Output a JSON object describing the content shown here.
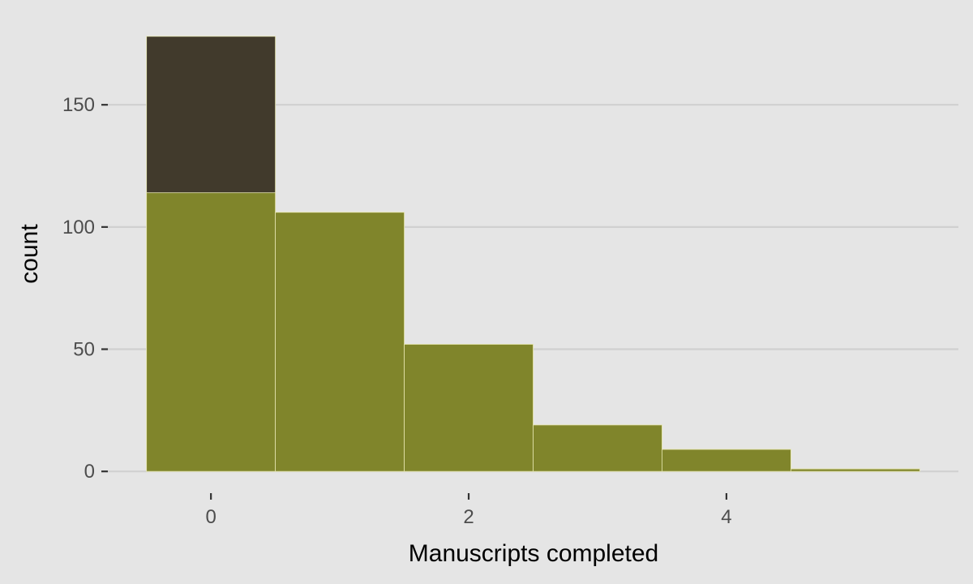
{
  "chart_data": {
    "type": "bar",
    "title": "",
    "xlabel": "Manuscripts completed",
    "ylabel": "count",
    "bin_width": 1,
    "categories": [
      0,
      1,
      2,
      3,
      4,
      5
    ],
    "series": [
      {
        "values": [
          178,
          106,
          52,
          19,
          9,
          1
        ],
        "color": "#413a2c"
      },
      {
        "values": [
          114,
          106,
          52,
          19,
          9,
          1
        ],
        "color": "#80852b"
      }
    ],
    "xlim": [
      -0.8,
      5.8
    ],
    "ylim": [
      -8.9,
      186.9
    ],
    "x_ticks": [
      0,
      2,
      4
    ],
    "y_ticks": [
      0,
      50,
      100,
      150
    ],
    "x_tick_labels": [
      "0",
      "2",
      "4"
    ],
    "y_tick_labels": [
      "0",
      "50",
      "100",
      "150"
    ],
    "grid": {
      "horizontal": true,
      "vertical": false
    },
    "background": "#e5e5e5",
    "grid_color": "#d0d0d0",
    "bar_outline": "#e6e6b0"
  }
}
